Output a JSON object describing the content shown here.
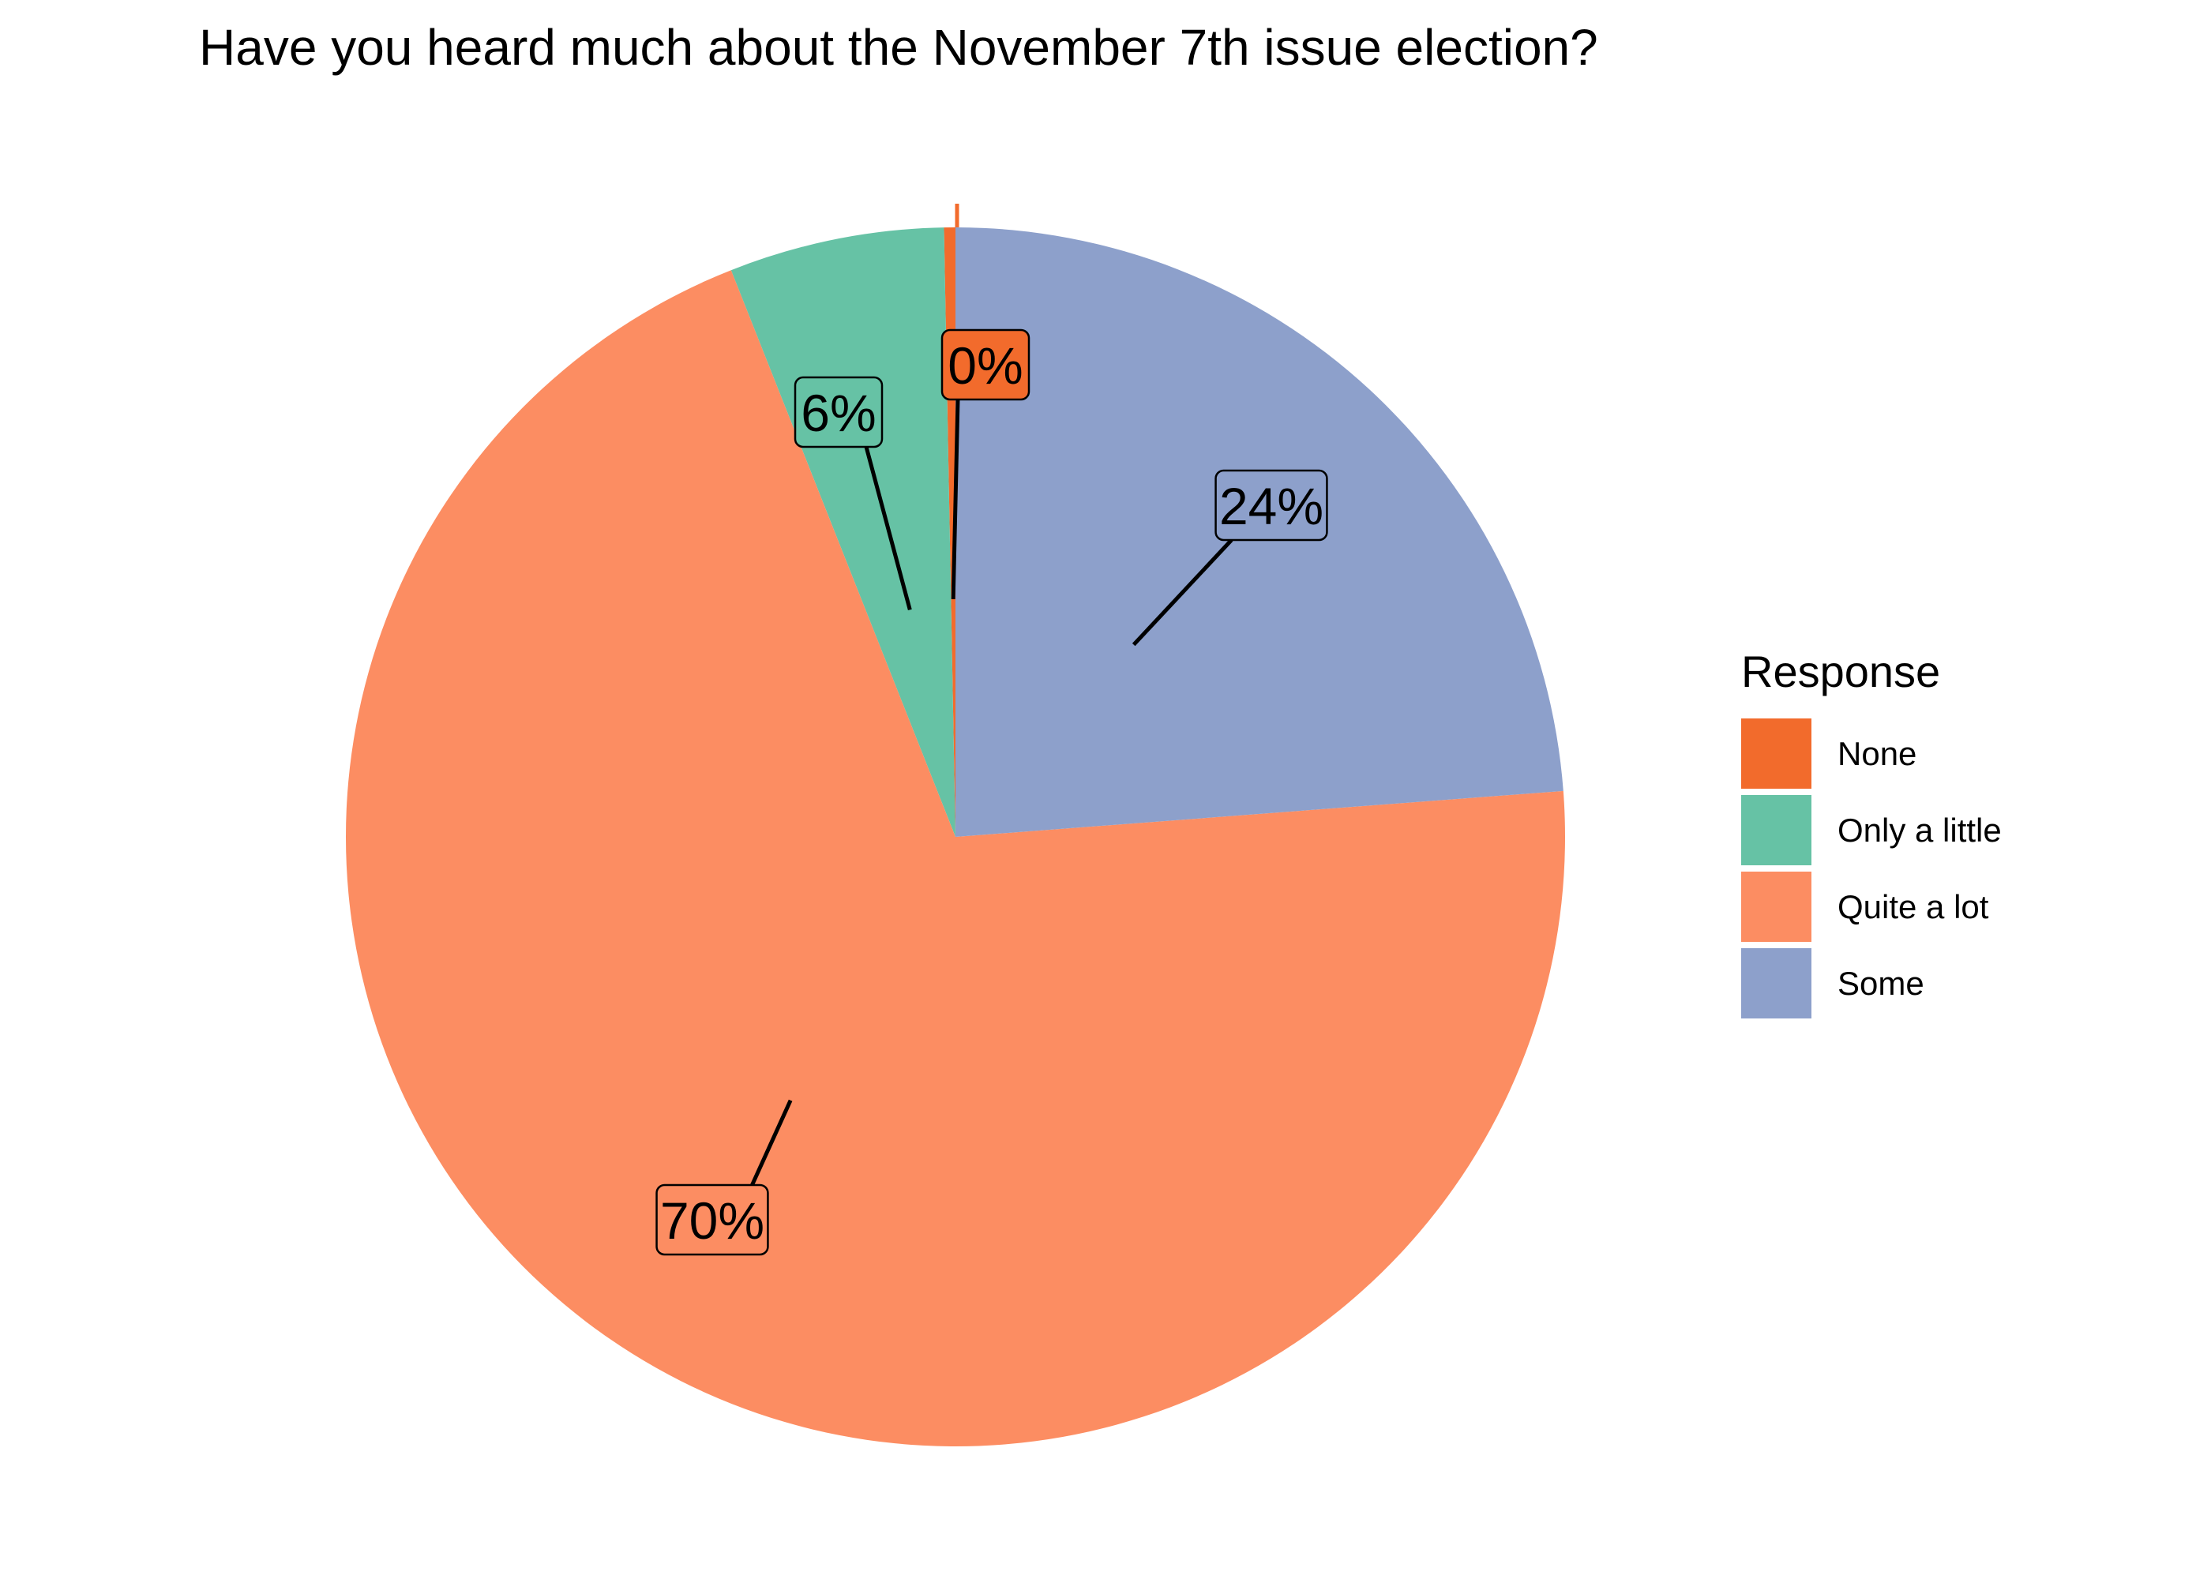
{
  "chart_data": {
    "type": "pie",
    "title": "Have you heard much about the November 7th issue election?",
    "categories": [
      "None",
      "Only a little",
      "Quite a lot",
      "Some"
    ],
    "values": [
      0.3,
      5.7,
      70.2,
      23.8
    ],
    "labels": [
      "0%",
      "6%",
      "70%",
      "24%"
    ],
    "colors": [
      "#f26b2c",
      "#66c2a5",
      "#fc8d62",
      "#8da0cb"
    ],
    "legend": {
      "title": "Response",
      "placement": "right"
    }
  }
}
